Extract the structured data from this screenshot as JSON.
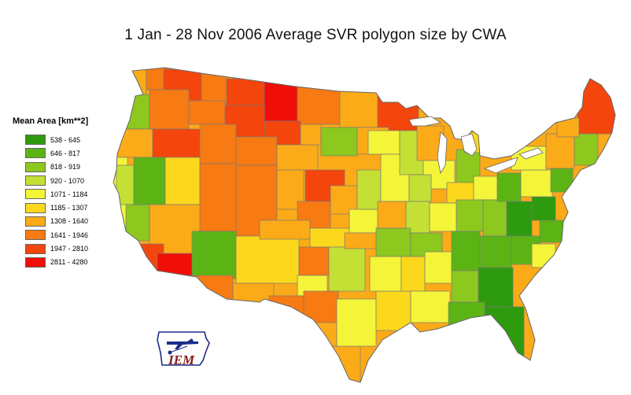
{
  "title": "1 Jan - 28 Nov 2006 Average SVR polygon size by CWA",
  "legend": {
    "title": "Mean Area [km**2]",
    "items": [
      {
        "label": "538 - 645",
        "color": "#2e9a0e"
      },
      {
        "label": "646 - 817",
        "color": "#5cb414"
      },
      {
        "label": "818 - 919",
        "color": "#8cc81e"
      },
      {
        "label": "920 - 1070",
        "color": "#c4e034"
      },
      {
        "label": "1071 - 1184",
        "color": "#f4f438"
      },
      {
        "label": "1185 - 1307",
        "color": "#fcd81c"
      },
      {
        "label": "1308 - 1640",
        "color": "#fbaa18"
      },
      {
        "label": "1641 - 1946",
        "color": "#f77a12"
      },
      {
        "label": "1947 - 2810",
        "color": "#f4450c"
      },
      {
        "label": "2811 - 4280",
        "color": "#ef0f08"
      }
    ]
  },
  "logo": {
    "text": "IEM"
  }
}
